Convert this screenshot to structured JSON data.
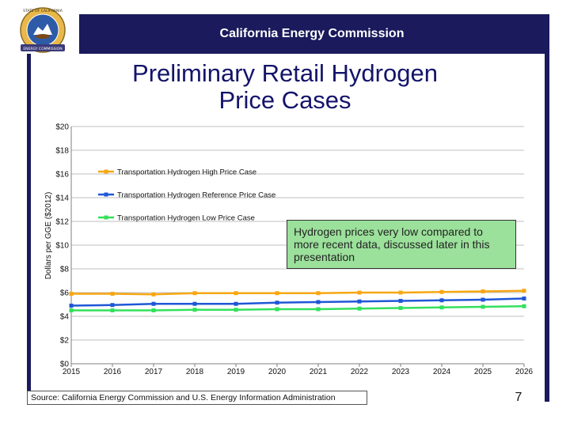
{
  "header": {
    "title": "California Energy Commission"
  },
  "logo": {
    "top_text": "STATE OF CALIFORNIA",
    "bottom_text": "ENERGY COMMISSION"
  },
  "slide": {
    "title_line1": "Preliminary Retail Hydrogen",
    "title_line2": "Price Cases",
    "page_number": "7"
  },
  "callout": {
    "text": "Hydrogen prices very low compared to more recent data, discussed later in this presentation"
  },
  "source": {
    "text": "Source: California Energy Commission and U.S. Energy Information Administration"
  },
  "colors": {
    "navy": "#1a1a5c",
    "high": "#f7a712",
    "reference": "#1f57d6",
    "low": "#33e05c",
    "callout_bg": "#9be09b"
  },
  "chart_data": {
    "type": "line",
    "title": "",
    "xlabel": "",
    "ylabel": "Dollars per GGE ($2012)",
    "x": [
      2015,
      2016,
      2017,
      2018,
      2019,
      2020,
      2021,
      2022,
      2023,
      2024,
      2025,
      2026
    ],
    "x_tick_labels": [
      "2015",
      "2016",
      "2017",
      "2018",
      "2019",
      "2020",
      "2021",
      "2022",
      "2023",
      "2024",
      "2025",
      "2026"
    ],
    "y_tick_labels": [
      "$0",
      "$2",
      "$4",
      "$6",
      "$8",
      "$10",
      "$12",
      "$14",
      "$16",
      "$18",
      "$20"
    ],
    "ylim": [
      0,
      20
    ],
    "grid": true,
    "legend_position": "top-left",
    "series": [
      {
        "name": "Transportation Hydrogen High Price Case",
        "color": "#f7a712",
        "values": [
          5.9,
          5.9,
          5.85,
          5.95,
          5.95,
          5.95,
          5.95,
          6.0,
          6.0,
          6.05,
          6.1,
          6.15
        ]
      },
      {
        "name": "Transportation Hydrogen Reference Price Case",
        "color": "#1f57d6",
        "values": [
          4.9,
          4.95,
          5.05,
          5.05,
          5.05,
          5.15,
          5.2,
          5.25,
          5.3,
          5.35,
          5.4,
          5.5
        ]
      },
      {
        "name": "Transportation Hydrogen Low Price Case",
        "color": "#33e05c",
        "values": [
          4.5,
          4.5,
          4.5,
          4.55,
          4.55,
          4.6,
          4.6,
          4.65,
          4.7,
          4.75,
          4.8,
          4.85
        ]
      }
    ]
  }
}
